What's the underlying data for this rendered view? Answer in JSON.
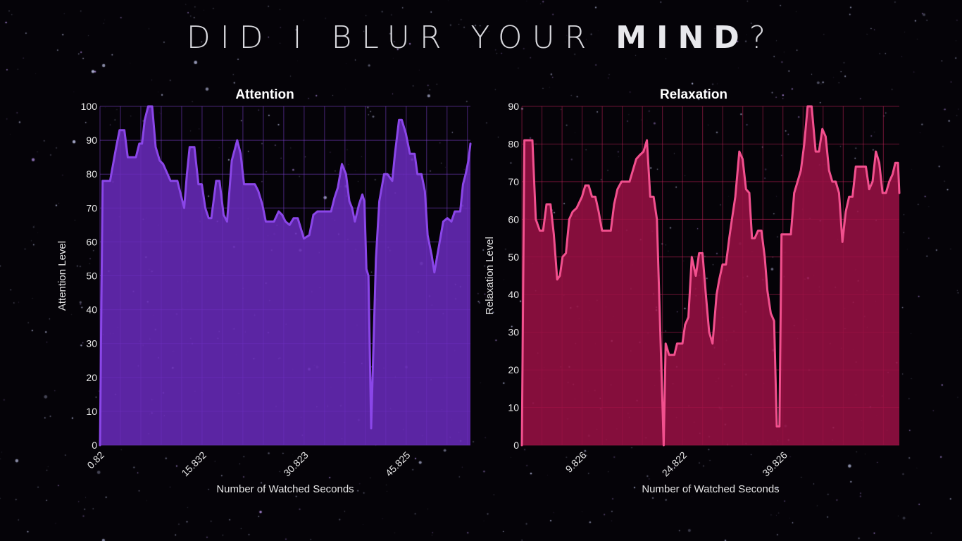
{
  "page": {
    "title_pre": "DID I BLUR YOUR ",
    "title_bold": "MIND",
    "title_post": "?"
  },
  "colors": {
    "background": "#050308",
    "attention_fill": "#6a2bbd",
    "attention_line": "#8a46e8",
    "attention_grid": "#7b3fd0",
    "relaxation_fill": "#9b1045",
    "relaxation_line": "#f2508e",
    "relaxation_grid": "#c02058"
  },
  "chart_data": [
    {
      "type": "area",
      "title": "Attention",
      "xlabel": "Number of Watched Seconds",
      "ylabel": "Attention Level",
      "ylim": [
        0,
        100
      ],
      "yticks": [
        0,
        10,
        20,
        30,
        40,
        50,
        60,
        70,
        80,
        90,
        100
      ],
      "xlim": [
        0.82,
        55.3
      ],
      "xticks": [
        0.82,
        15.832,
        30.823,
        45.825
      ],
      "xtick_labels": [
        "0.82",
        "15.832",
        "30.823",
        "45.825"
      ],
      "grid": true,
      "series": [
        {
          "x": [
            0.82,
            1.2,
            2.3,
            3.2,
            3.7,
            4.4,
            4.9,
            6.1,
            6.6,
            7.0,
            7.4,
            7.9,
            8.5,
            9.0,
            9.6,
            10.1,
            11.2,
            11.7,
            12.2,
            12.7,
            13.2,
            13.6,
            14.0,
            14.7,
            15.3,
            15.8,
            16.3,
            16.8,
            17.2,
            17.9,
            18.4,
            19.0,
            19.5,
            20.2,
            21.0,
            21.5,
            22.0,
            22.6,
            23.1,
            23.6,
            24.1,
            24.7,
            25.2,
            25.8,
            26.4,
            27.1,
            27.6,
            28.1,
            28.7,
            29.3,
            29.9,
            30.8,
            31.6,
            32.2,
            32.8,
            33.6,
            34.3,
            34.8,
            35.3,
            35.8,
            36.4,
            37.0,
            37.5,
            37.9,
            38.3,
            38.9,
            39.4,
            39.7,
            40.0,
            40.3,
            40.7,
            41.4,
            41.9,
            42.6,
            43.1,
            43.8,
            44.2,
            44.8,
            45.2,
            45.8,
            46.4,
            47.1,
            47.5,
            48.1,
            48.6,
            49.0,
            49.6,
            50.0,
            50.6,
            51.3,
            51.9,
            52.5,
            53.0,
            53.4,
            53.8,
            54.2,
            54.6,
            55.0,
            55.3
          ],
          "y": [
            0,
            78,
            78,
            88,
            93,
            93,
            85,
            85,
            89,
            89,
            96,
            100,
            100,
            88,
            84,
            83,
            78,
            78,
            78,
            74,
            70,
            80,
            88,
            88,
            77,
            77,
            70,
            67,
            67,
            78,
            78,
            68,
            66,
            84,
            90,
            86,
            77,
            77,
            77,
            77,
            75,
            71,
            66,
            66,
            66,
            69,
            68,
            66,
            65,
            67,
            67,
            61,
            62,
            68,
            69,
            69,
            69,
            69,
            73,
            76,
            83,
            80,
            72,
            70,
            66,
            71,
            74,
            72,
            52,
            50,
            5,
            55,
            72,
            80,
            80,
            78,
            86,
            96,
            96,
            92,
            86,
            86,
            80,
            80,
            75,
            62,
            56,
            51,
            58,
            66,
            67,
            66,
            69,
            69,
            69,
            77,
            80,
            84,
            89
          ]
        }
      ]
    },
    {
      "type": "area",
      "title": "Relaxation",
      "xlabel": "Number of Watched Seconds",
      "ylabel": "Relaxation Level",
      "ylim": [
        0,
        90
      ],
      "yticks": [
        0,
        10,
        20,
        30,
        40,
        50,
        60,
        70,
        80,
        90
      ],
      "xlim": [
        0.82,
        57.2
      ],
      "xticks": [
        9.826,
        24.822,
        39.826
      ],
      "xtick_labels": [
        "9.826",
        "24.822",
        "39.826"
      ],
      "grid": true,
      "series": [
        {
          "x": [
            0.82,
            1.2,
            1.6,
            2.4,
            2.9,
            3.5,
            4.0,
            4.5,
            5.1,
            5.6,
            6.1,
            6.5,
            6.9,
            7.4,
            7.9,
            8.4,
            9.0,
            9.8,
            10.3,
            10.8,
            11.3,
            11.8,
            12.3,
            12.8,
            13.4,
            14.1,
            14.6,
            15.1,
            15.7,
            16.3,
            16.9,
            17.4,
            17.9,
            18.4,
            19.0,
            19.5,
            20.0,
            20.5,
            21.0,
            21.5,
            22.0,
            22.3,
            22.8,
            23.2,
            23.6,
            24.0,
            24.4,
            24.8,
            25.2,
            25.7,
            26.2,
            26.8,
            27.3,
            27.8,
            28.3,
            28.8,
            29.3,
            29.9,
            30.3,
            30.8,
            31.3,
            31.8,
            32.2,
            32.7,
            33.3,
            33.8,
            34.3,
            34.8,
            35.2,
            35.6,
            36.1,
            36.6,
            37.1,
            37.5,
            38.0,
            38.5,
            38.9,
            39.3,
            39.6,
            40.1,
            40.5,
            41.0,
            41.5,
            42.0,
            42.5,
            43.0,
            43.5,
            44.1,
            44.7,
            45.2,
            45.7,
            46.2,
            46.7,
            47.2,
            47.7,
            48.2,
            48.7,
            49.2,
            49.7,
            50.2,
            50.7,
            51.2,
            51.7,
            52.2,
            52.7,
            53.2,
            53.7,
            54.2,
            54.7,
            55.2,
            55.7,
            56.2,
            56.6,
            57.0,
            57.2
          ],
          "y": [
            0,
            81,
            81,
            81,
            60,
            57,
            57,
            64,
            64,
            56,
            44,
            45,
            50,
            51,
            60,
            62,
            63,
            66,
            69,
            69,
            66,
            66,
            62,
            57,
            57,
            57,
            64,
            68,
            70,
            70,
            70,
            73,
            76,
            77,
            78,
            81,
            66,
            66,
            60,
            30,
            0,
            27,
            24,
            24,
            24,
            27,
            27,
            27,
            32,
            34,
            50,
            45,
            51,
            51,
            40,
            30,
            27,
            40,
            44,
            48,
            48,
            55,
            60,
            66,
            78,
            76,
            68,
            67,
            55,
            55,
            57,
            57,
            50,
            41,
            35,
            33,
            5,
            5,
            56,
            56,
            56,
            56,
            67,
            70,
            73,
            80,
            90,
            90,
            78,
            78,
            84,
            82,
            73,
            70,
            70,
            67,
            54,
            62,
            66,
            66,
            74,
            74,
            74,
            74,
            68,
            70,
            78,
            75,
            67,
            67,
            70,
            72,
            75,
            75,
            67
          ]
        }
      ]
    }
  ]
}
